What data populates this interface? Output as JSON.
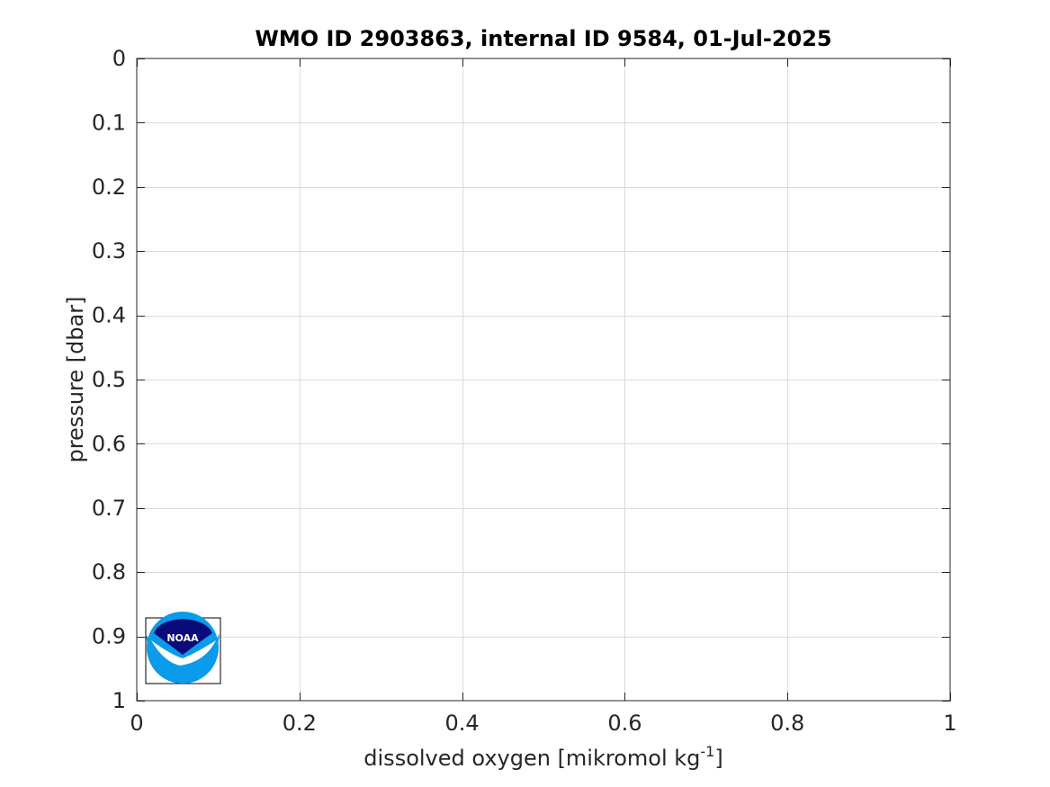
{
  "chart_data": {
    "type": "line",
    "title": "WMO ID 2903863, internal ID 9584, 01-Jul-2025",
    "xlabel": "dissolved oxygen [mikromol kg",
    "xlabel_superscript": "-1",
    "xlabel_suffix": "]",
    "ylabel": "pressure [dbar]",
    "xlim": [
      0,
      1
    ],
    "ylim": [
      0,
      1
    ],
    "y_reversed": true,
    "x_ticks": [
      0,
      0.2,
      0.4,
      0.6,
      0.8,
      1
    ],
    "x_tick_labels": [
      "0",
      "0.2",
      "0.4",
      "0.6",
      "0.8",
      "1"
    ],
    "y_ticks": [
      0,
      0.1,
      0.2,
      0.3,
      0.4,
      0.5,
      0.6,
      0.7,
      0.8,
      0.9,
      1
    ],
    "y_tick_labels": [
      "0",
      "0.1",
      "0.2",
      "0.3",
      "0.4",
      "0.5",
      "0.6",
      "0.7",
      "0.8",
      "0.9",
      "1"
    ],
    "grid": true,
    "series": [],
    "logo": {
      "text": "NOAA",
      "colors": {
        "dark_blue": "#0a0a7a",
        "light_blue": "#0a9bea",
        "white": "#ffffff"
      },
      "placement": "bottom-left"
    },
    "colors": {
      "grid": "#dcdcdc",
      "axis": "#262626",
      "tick_text": "#262626",
      "title_text": "#000000",
      "background": "#ffffff"
    }
  }
}
